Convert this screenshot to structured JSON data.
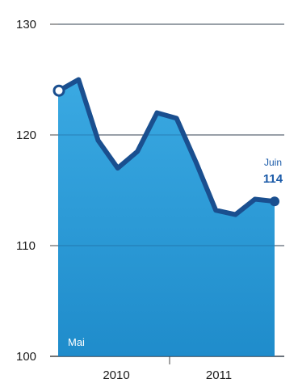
{
  "chart_data": {
    "type": "area",
    "title": "",
    "xlabel": "",
    "ylabel": "",
    "ylim": [
      100,
      130
    ],
    "yticks": [
      100,
      110,
      120,
      130
    ],
    "x_tick_labels": [
      "2010",
      "2011"
    ],
    "grid": true,
    "series": [
      {
        "values": [
          124,
          125,
          119.5,
          117,
          118.5,
          122,
          121.5,
          117.5,
          113.2,
          112.8,
          114.2,
          114
        ]
      }
    ],
    "start_label": "Mai",
    "end_label_month": "Juin",
    "end_label_value": "114",
    "colors": {
      "line": "#1a4f8f",
      "fill_top": "#3aa9e2",
      "fill_bottom": "#1f8ccb",
      "grid": "#444444",
      "callout": "#1a5aa8"
    }
  }
}
